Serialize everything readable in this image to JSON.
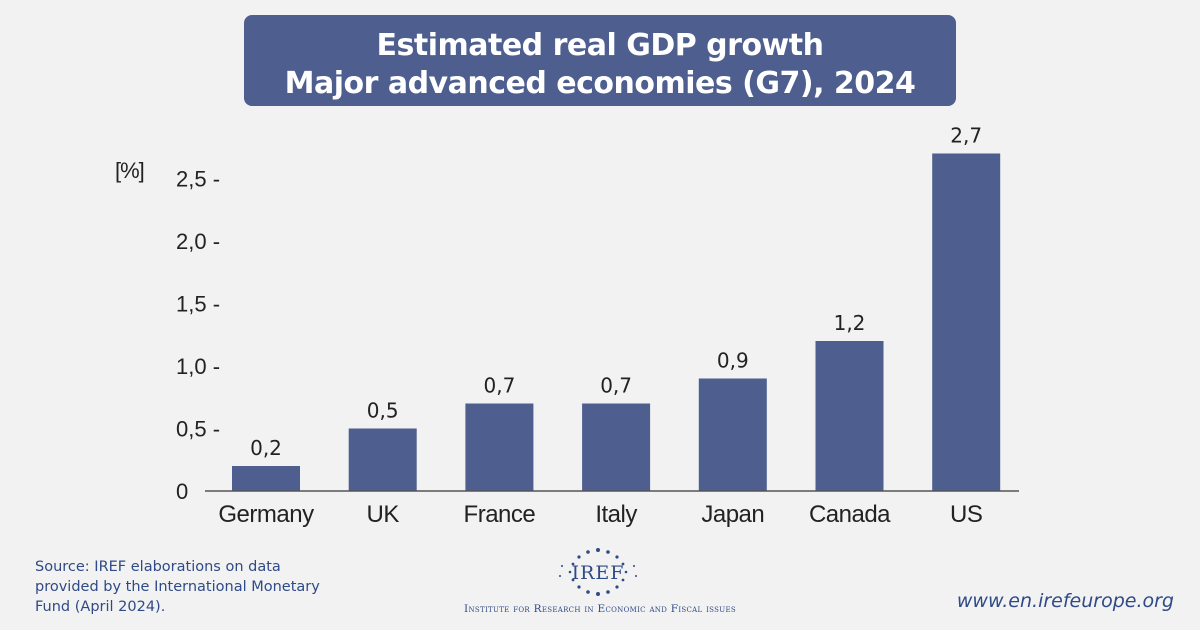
{
  "header": {
    "title_line1": "Estimated real GDP growth",
    "title_line2": "Major advanced economies (G7), 2024"
  },
  "chart_data": {
    "type": "bar",
    "categories": [
      "Germany",
      "UK",
      "France",
      "Italy",
      "Japan",
      "Canada",
      "US"
    ],
    "values": [
      0.2,
      0.5,
      0.7,
      0.7,
      0.9,
      1.2,
      2.7
    ],
    "value_labels": [
      "0,2",
      "0,5",
      "0,7",
      "0,7",
      "0,9",
      "1,2",
      "2,7"
    ],
    "ylabel": "[%]",
    "ylim": [
      0,
      2.7
    ],
    "yticks": [
      0,
      0.5,
      1.0,
      1.5,
      2.0,
      2.5
    ],
    "ytick_labels": [
      "0",
      "0,5 -",
      "1,0 -",
      "1,5 -",
      "2,0 -",
      "2,5 -"
    ],
    "bar_color": "#4d5e8f",
    "grid": false
  },
  "footer": {
    "source": "Source: IREF elaborations on data provided by the International Monetary Fund (April 2024).",
    "logo_text": "IREF",
    "institute": "Institute for Research in Economic and Fiscal issues",
    "url": "www.en.irefeurope.org"
  },
  "colors": {
    "background": "#f2f2f2",
    "accent": "#4d5e8f",
    "footer_text": "#2f4a86"
  }
}
